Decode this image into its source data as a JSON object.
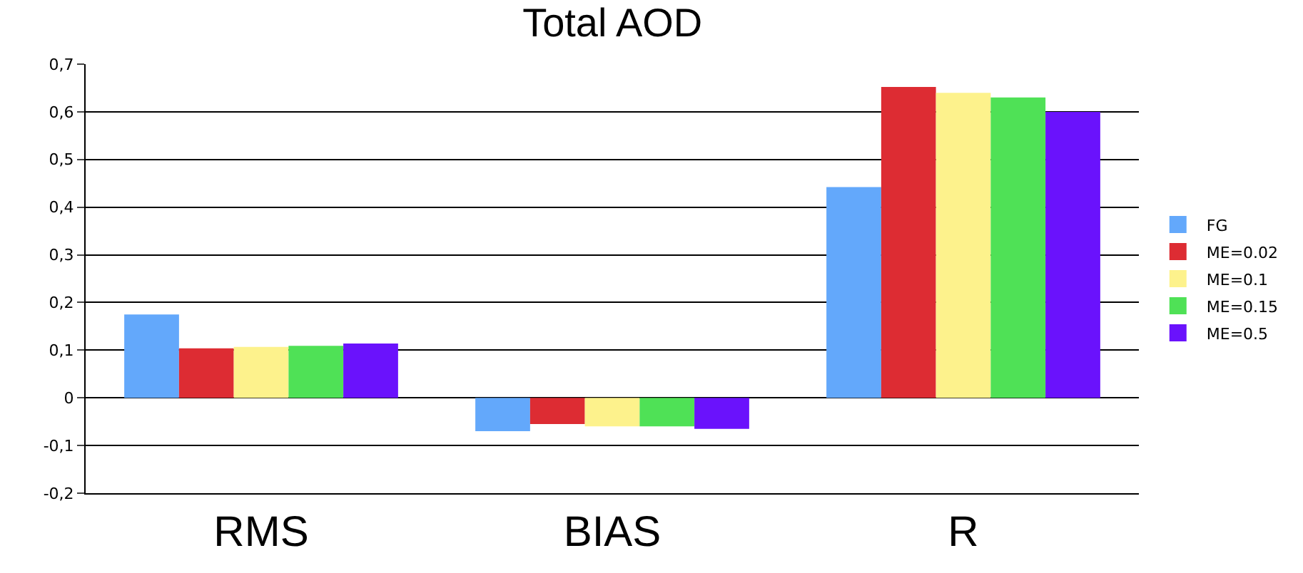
{
  "chart_data": {
    "type": "bar",
    "title": "Total AOD",
    "categories": [
      "RMS",
      "BIAS",
      "R"
    ],
    "series": [
      {
        "name": "FG",
        "color": "#63a8fb",
        "values": [
          0.175,
          -0.07,
          0.442
        ]
      },
      {
        "name": "ME=0.02",
        "color": "#dd2c33",
        "values": [
          0.104,
          -0.055,
          0.652
        ]
      },
      {
        "name": "ME=0.1",
        "color": "#fdf28c",
        "values": [
          0.107,
          -0.06,
          0.64
        ]
      },
      {
        "name": "ME=0.15",
        "color": "#4fe156",
        "values": [
          0.109,
          -0.06,
          0.63
        ]
      },
      {
        "name": "ME=0.5",
        "color": "#6a12fc",
        "values": [
          0.114,
          -0.065,
          0.6
        ]
      }
    ],
    "ylim": [
      -0.2,
      0.7
    ],
    "yticks": [
      {
        "value": -0.2,
        "label": "-0,2"
      },
      {
        "value": -0.1,
        "label": "-0,1"
      },
      {
        "value": 0,
        "label": "0"
      },
      {
        "value": 0.1,
        "label": "0,1"
      },
      {
        "value": 0.2,
        "label": "0,2"
      },
      {
        "value": 0.3,
        "label": "0,3"
      },
      {
        "value": 0.4,
        "label": "0,4"
      },
      {
        "value": 0.5,
        "label": "0,5"
      },
      {
        "value": 0.6,
        "label": "0,6"
      },
      {
        "value": 0.7,
        "label": "0,7"
      }
    ],
    "grid": "y",
    "legend": "right"
  }
}
